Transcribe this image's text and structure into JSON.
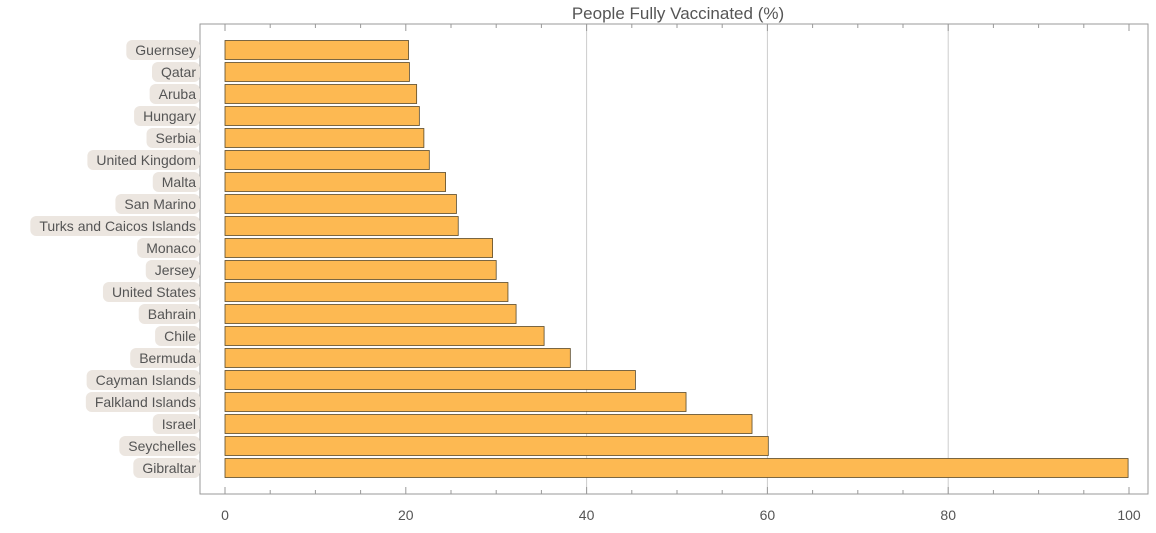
{
  "chart_data": {
    "type": "bar",
    "orientation": "horizontal",
    "title": "People Fully Vaccinated (%)",
    "xlabel": "",
    "ylabel": "",
    "xlim": [
      0,
      100
    ],
    "x_ticks": [
      0,
      20,
      40,
      60,
      80,
      100
    ],
    "grid": "vertical gridlines at 40, 60, 80",
    "categories": [
      "Guernsey",
      "Qatar",
      "Aruba",
      "Hungary",
      "Serbia",
      "United Kingdom",
      "Malta",
      "San Marino",
      "Turks and Caicos Islands",
      "Monaco",
      "Jersey",
      "United States",
      "Bahrain",
      "Chile",
      "Bermuda",
      "Cayman Islands",
      "Falkland Islands",
      "Israel",
      "Seychelles",
      "Gibraltar"
    ],
    "values": [
      20.3,
      20.4,
      21.2,
      21.5,
      22.0,
      22.6,
      24.4,
      25.6,
      25.8,
      29.6,
      30.0,
      31.3,
      32.2,
      35.3,
      38.2,
      45.4,
      51.0,
      58.3,
      60.1,
      99.9
    ],
    "colors": {
      "bar_fill": "#FDB952",
      "bar_stroke": "#5a4a2a",
      "label_bg": "#ECE6E0",
      "grid": "#cccccc",
      "text": "#555555"
    }
  }
}
